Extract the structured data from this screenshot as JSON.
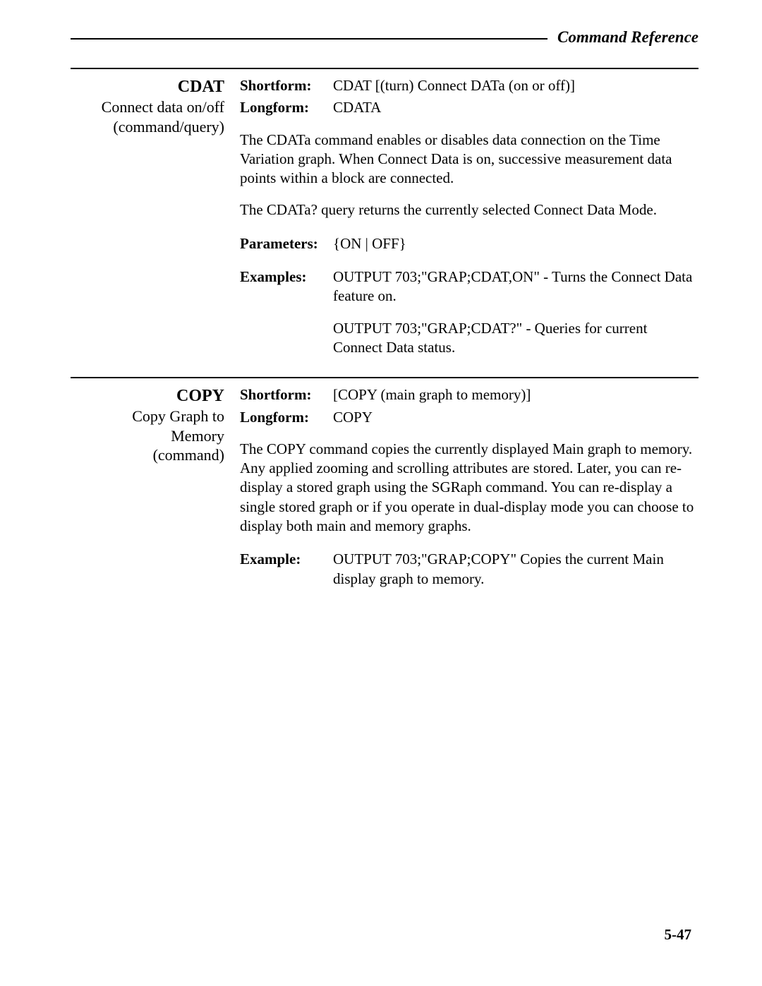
{
  "header": {
    "title": "Command Reference"
  },
  "entries": [
    {
      "left": {
        "title": "CDAT",
        "subtitle1": "Connect data on/off",
        "subtitle2": "(command/query)"
      },
      "shortform_label": "Shortform:",
      "shortform_value": "CDAT [(turn) Connect DATa (on or off)]",
      "longform_label": "Longform:",
      "longform_value": "CDATA",
      "paragraphs": [
        "The CDATa command enables or disables data connection on the Time Variation graph. When Connect Data is on, successive measurement data points within a block are connected.",
        "The CDATa? query returns the currently selected Connect Data Mode."
      ],
      "params_label": "Parameters:",
      "params_value": "{ON | OFF}",
      "examples_label": "Examples:",
      "examples": [
        "OUTPUT 703;\"GRAP;CDAT,ON\" - Turns the Connect Data feature on.",
        "OUTPUT 703;\"GRAP;CDAT?\" - Queries for current Connect Data status."
      ]
    },
    {
      "left": {
        "title": "COPY",
        "subtitle1": "Copy Graph to",
        "subtitle2": "Memory",
        "subtitle3": "(command)"
      },
      "shortform_label": "Shortform:",
      "shortform_value": "[COPY (main graph to memory)]",
      "longform_label": "Longform:",
      "longform_value": "COPY",
      "paragraphs": [
        "The COPY command copies the currently displayed Main graph to memory. Any applied zooming and scrolling attributes are stored. Later, you can re-display a stored graph using the SGRaph command. You can re-display a single stored graph or if you operate in dual-display mode you can choose to display both main and memory graphs."
      ],
      "examples_label": "Example:",
      "examples": [
        "OUTPUT 703;\"GRAP;COPY\" Copies the current Main display graph to memory."
      ]
    }
  ],
  "page_number": "5-47"
}
